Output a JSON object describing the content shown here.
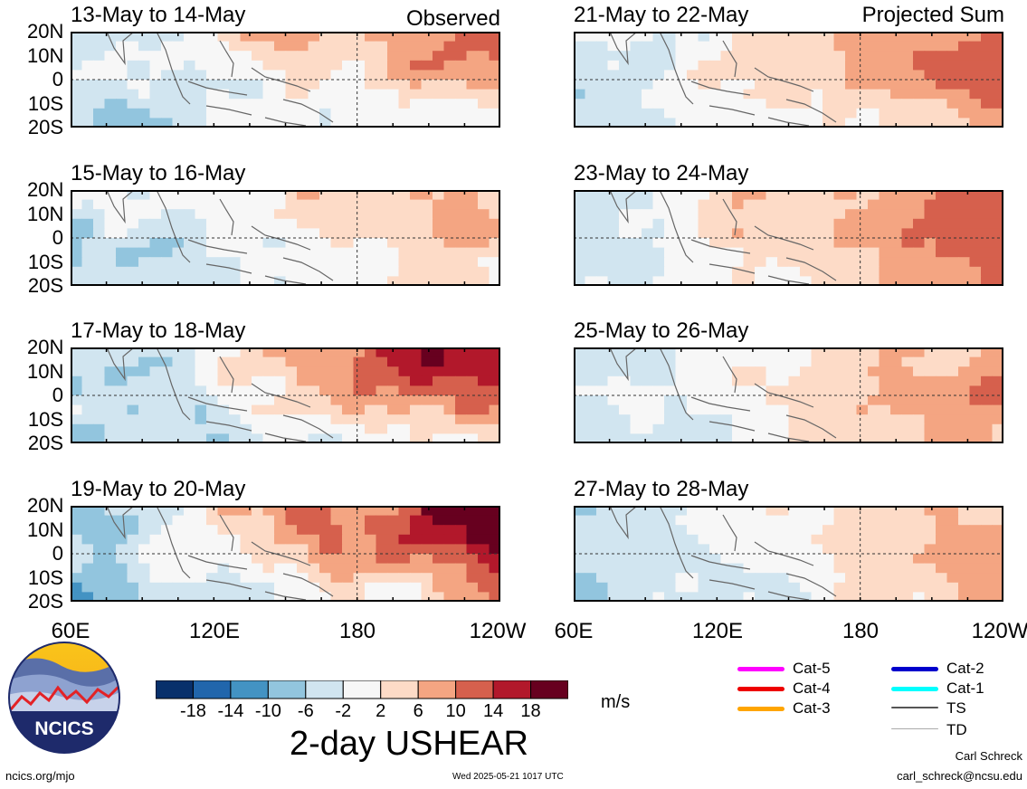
{
  "observed_label": "Observed",
  "projected_label": "Projected Sum",
  "lat_labels": [
    "20N",
    "10N",
    "0",
    "10S",
    "20S"
  ],
  "lon_labels_left": [
    "60E",
    "120E",
    "180",
    "120W"
  ],
  "lon_labels_right": [
    "60E",
    "120E",
    "180",
    "120W"
  ],
  "panels": [
    {
      "title": "13-May to 14-May",
      "column": "left",
      "row": 0
    },
    {
      "title": "15-May to 16-May",
      "column": "left",
      "row": 1
    },
    {
      "title": "17-May to 18-May",
      "column": "left",
      "row": 2
    },
    {
      "title": "19-May to 20-May",
      "column": "left",
      "row": 3
    },
    {
      "title": "21-May to 22-May",
      "column": "right",
      "row": 0
    },
    {
      "title": "23-May to 24-May",
      "column": "right",
      "row": 1
    },
    {
      "title": "25-May to 26-May",
      "column": "right",
      "row": 2
    },
    {
      "title": "27-May to 28-May",
      "column": "right",
      "row": 3
    }
  ],
  "colorbar": {
    "colors": [
      "#08306b",
      "#2166ac",
      "#4393c3",
      "#92c5de",
      "#d1e5f0",
      "#f7f7f7",
      "#fddbc7",
      "#f4a582",
      "#d6604d",
      "#b2182b",
      "#67001f"
    ],
    "labels": [
      "-18",
      "-14",
      "-10",
      "-6",
      "-2",
      "2",
      "6",
      "10",
      "14",
      "18"
    ],
    "units": "m/s",
    "title": "2-day USHEAR"
  },
  "legend": [
    {
      "label": "Cat-5",
      "color": "#ff00ff"
    },
    {
      "label": "Cat-4",
      "color": "#ee0000"
    },
    {
      "label": "Cat-3",
      "color": "#ffa500"
    },
    {
      "label": "Cat-2",
      "color": "#0000cc"
    },
    {
      "label": "Cat-1",
      "color": "#00ffff"
    },
    {
      "label": "TS",
      "color": "#555555"
    },
    {
      "label": "TD",
      "color": "#aaaaaa"
    }
  ],
  "logo": {
    "text": "NCICS"
  },
  "footer": {
    "site": "ncics.org/mjo",
    "timestamp": "Wed 2025-05-21 1017 UTC",
    "author": "Carl Schreck",
    "email": "carl_schreck@ncsu.edu"
  }
}
